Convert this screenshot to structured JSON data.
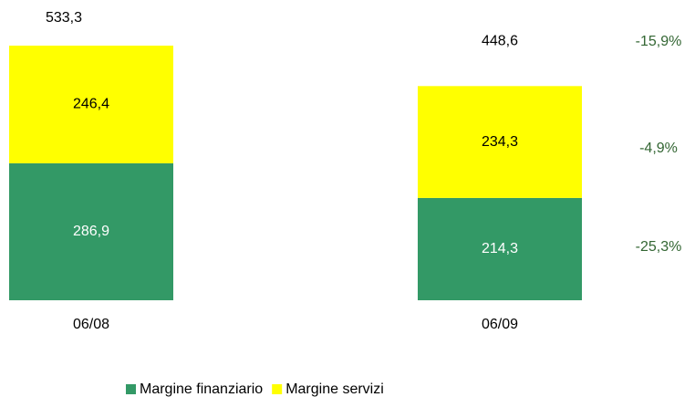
{
  "chart_data": {
    "type": "stacked-bar",
    "categories": [
      "06/08",
      "06/09"
    ],
    "series": [
      {
        "name": "Margine finanziario",
        "color": "#339966",
        "values": [
          286.9,
          214.3
        ],
        "value_labels": [
          "286,9",
          "214,3"
        ]
      },
      {
        "name": "Margine servizi",
        "color": "#ffff00",
        "values": [
          246.4,
          234.3
        ],
        "value_labels": [
          "246,4",
          "234,3"
        ]
      }
    ],
    "totals": [
      533.3,
      448.6
    ],
    "total_labels": [
      "533,3",
      "448,6"
    ],
    "annotations": [
      "-15,9%",
      "-4,9%",
      "-25,3%"
    ],
    "legend": "bottom"
  }
}
